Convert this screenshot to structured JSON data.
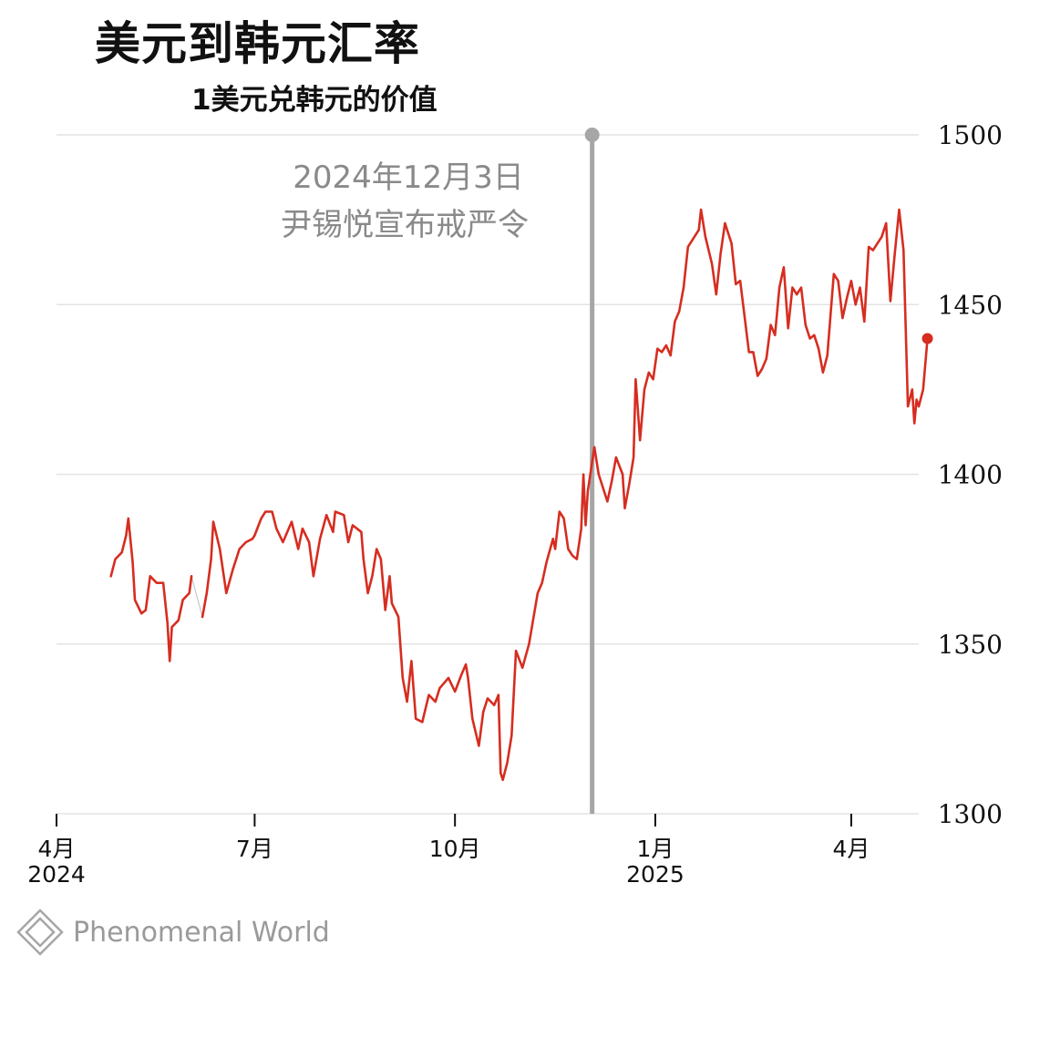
{
  "title": "美元到韩元汇率",
  "subtitle": "1美元兑韩元的价值",
  "source_logo": "Phenomenal World",
  "colors": {
    "line": "#d62d20",
    "marker": "#a6a6a6",
    "grid": "#e3e3e3",
    "gap": "#c8c8c8"
  },
  "chart_data": {
    "type": "line",
    "title": "美元到韩元汇率",
    "subtitle": "1美元兑韩元的价值",
    "xlabel": "",
    "ylabel": "",
    "ylim": [
      1300,
      1500
    ],
    "xlim": [
      "2024-04-01",
      "2025-05-02"
    ],
    "grid": true,
    "y_axis_position": "right",
    "yticks": [
      {
        "value": 1500,
        "label": "1500"
      },
      {
        "value": 1450,
        "label": "1450"
      },
      {
        "value": 1400,
        "label": "1400"
      },
      {
        "value": 1350,
        "label": "1350"
      },
      {
        "value": 1300,
        "label": "1300"
      }
    ],
    "xticks": [
      {
        "date": "2024-04-01",
        "label": "4月",
        "year": "2024"
      },
      {
        "date": "2024-07-01",
        "label": "7月",
        "year": ""
      },
      {
        "date": "2024-10-01",
        "label": "10月",
        "year": ""
      },
      {
        "date": "2025-01-01",
        "label": "1月",
        "year": "2025"
      },
      {
        "date": "2025-04-01",
        "label": "4月",
        "year": ""
      }
    ],
    "annotation": {
      "date": "2024-12-03",
      "line1": "2024年12月3日",
      "line2": "尹锡悦宣布戒严令"
    },
    "series": [
      {
        "values": [
          [
            "2024-04-26",
            1370
          ],
          [
            "2024-04-28",
            1375
          ],
          [
            "2024-05-01",
            1377
          ],
          [
            "2024-05-03",
            1382
          ],
          [
            "2024-05-04",
            1387
          ],
          [
            "2024-05-06",
            1374
          ],
          [
            "2024-05-07",
            1363
          ],
          [
            "2024-05-10",
            1359
          ],
          [
            "2024-05-12",
            1360
          ],
          [
            "2024-05-14",
            1370
          ],
          [
            "2024-05-17",
            1368
          ],
          [
            "2024-05-20",
            1368
          ],
          [
            "2024-05-22",
            1356
          ],
          [
            "2024-05-23",
            1345
          ],
          [
            "2024-05-24",
            1355
          ],
          [
            "2024-05-27",
            1357
          ],
          [
            "2024-05-29",
            1363
          ],
          [
            "2024-06-01",
            1365
          ],
          [
            "2024-06-02",
            1370
          ],
          [
            "2024-06-07",
            1358
          ],
          [
            "2024-06-09",
            1365
          ],
          [
            "2024-06-11",
            1375
          ],
          [
            "2024-06-12",
            1386
          ],
          [
            "2024-06-15",
            1378
          ],
          [
            "2024-06-18",
            1365
          ],
          [
            "2024-06-21",
            1372
          ],
          [
            "2024-06-24",
            1378
          ],
          [
            "2024-06-27",
            1380
          ],
          [
            "2024-06-30",
            1381
          ],
          [
            "2024-07-01",
            1382
          ],
          [
            "2024-07-04",
            1387
          ],
          [
            "2024-07-06",
            1389
          ],
          [
            "2024-07-09",
            1389
          ],
          [
            "2024-07-11",
            1384
          ],
          [
            "2024-07-14",
            1380
          ],
          [
            "2024-07-16",
            1383
          ],
          [
            "2024-07-18",
            1386
          ],
          [
            "2024-07-21",
            1378
          ],
          [
            "2024-07-23",
            1384
          ],
          [
            "2024-07-26",
            1380
          ],
          [
            "2024-07-28",
            1370
          ],
          [
            "2024-07-31",
            1381
          ],
          [
            "2024-08-03",
            1388
          ],
          [
            "2024-08-06",
            1383
          ],
          [
            "2024-08-07",
            1389
          ],
          [
            "2024-08-11",
            1388
          ],
          [
            "2024-08-13",
            1380
          ],
          [
            "2024-08-15",
            1385
          ],
          [
            "2024-08-19",
            1383
          ],
          [
            "2024-08-20",
            1375
          ],
          [
            "2024-08-22",
            1365
          ],
          [
            "2024-08-24",
            1370
          ],
          [
            "2024-08-26",
            1378
          ],
          [
            "2024-08-28",
            1375
          ],
          [
            "2024-08-30",
            1360
          ],
          [
            "2024-09-01",
            1370
          ],
          [
            "2024-09-02",
            1362
          ],
          [
            "2024-09-05",
            1358
          ],
          [
            "2024-09-07",
            1340
          ],
          [
            "2024-09-09",
            1333
          ],
          [
            "2024-09-11",
            1345
          ],
          [
            "2024-09-13",
            1328
          ],
          [
            "2024-09-16",
            1327
          ],
          [
            "2024-09-19",
            1335
          ],
          [
            "2024-09-22",
            1333
          ],
          [
            "2024-09-24",
            1337
          ],
          [
            "2024-09-28",
            1340
          ],
          [
            "2024-10-01",
            1336
          ],
          [
            "2024-10-04",
            1341
          ],
          [
            "2024-10-06",
            1344
          ],
          [
            "2024-10-07",
            1340
          ],
          [
            "2024-10-09",
            1328
          ],
          [
            "2024-10-12",
            1320
          ],
          [
            "2024-10-14",
            1330
          ],
          [
            "2024-10-16",
            1334
          ],
          [
            "2024-10-19",
            1332
          ],
          [
            "2024-10-21",
            1335
          ],
          [
            "2024-10-22",
            1312
          ],
          [
            "2024-10-23",
            1310
          ],
          [
            "2024-10-25",
            1315
          ],
          [
            "2024-10-27",
            1323
          ],
          [
            "2024-10-29",
            1348
          ],
          [
            "2024-11-01",
            1343
          ],
          [
            "2024-11-04",
            1350
          ],
          [
            "2024-11-08",
            1365
          ],
          [
            "2024-11-10",
            1368
          ],
          [
            "2024-11-12",
            1374
          ],
          [
            "2024-11-15",
            1381
          ],
          [
            "2024-11-16",
            1378
          ],
          [
            "2024-11-18",
            1389
          ],
          [
            "2024-11-20",
            1387
          ],
          [
            "2024-11-22",
            1378
          ],
          [
            "2024-11-24",
            1376
          ],
          [
            "2024-11-26",
            1375
          ],
          [
            "2024-11-28",
            1384
          ],
          [
            "2024-11-29",
            1400
          ],
          [
            "2024-11-30",
            1385
          ],
          [
            "2024-12-01",
            1395
          ],
          [
            "2024-12-04",
            1408
          ],
          [
            "2024-12-06",
            1400
          ],
          [
            "2024-12-08",
            1396
          ],
          [
            "2024-12-10",
            1392
          ],
          [
            "2024-12-12",
            1398
          ],
          [
            "2024-12-14",
            1405
          ],
          [
            "2024-12-17",
            1400
          ],
          [
            "2024-12-18",
            1390
          ],
          [
            "2024-12-20",
            1397
          ],
          [
            "2024-12-22",
            1405
          ],
          [
            "2024-12-23",
            1428
          ],
          [
            "2024-12-25",
            1410
          ],
          [
            "2024-12-27",
            1425
          ],
          [
            "2024-12-29",
            1430
          ],
          [
            "2024-12-31",
            1428
          ],
          [
            "2025-01-02",
            1437
          ],
          [
            "2025-01-04",
            1436
          ],
          [
            "2025-01-06",
            1438
          ],
          [
            "2025-01-08",
            1435
          ],
          [
            "2025-01-10",
            1445
          ],
          [
            "2025-01-12",
            1448
          ],
          [
            "2025-01-14",
            1455
          ],
          [
            "2025-01-16",
            1467
          ],
          [
            "2025-01-19",
            1470
          ],
          [
            "2025-01-21",
            1472
          ],
          [
            "2025-01-22",
            1478
          ],
          [
            "2025-01-24",
            1470
          ],
          [
            "2025-01-27",
            1462
          ],
          [
            "2025-01-29",
            1453
          ],
          [
            "2025-01-31",
            1465
          ],
          [
            "2025-02-02",
            1474
          ],
          [
            "2025-02-05",
            1468
          ],
          [
            "2025-02-07",
            1456
          ],
          [
            "2025-02-09",
            1457
          ],
          [
            "2025-02-13",
            1436
          ],
          [
            "2025-02-15",
            1436
          ],
          [
            "2025-02-17",
            1429
          ],
          [
            "2025-02-19",
            1431
          ],
          [
            "2025-02-21",
            1434
          ],
          [
            "2025-02-23",
            1444
          ],
          [
            "2025-02-25",
            1441
          ],
          [
            "2025-02-27",
            1455
          ],
          [
            "2025-03-01",
            1461
          ],
          [
            "2025-03-03",
            1443
          ],
          [
            "2025-03-05",
            1455
          ],
          [
            "2025-03-07",
            1453
          ],
          [
            "2025-03-09",
            1455
          ],
          [
            "2025-03-11",
            1444
          ],
          [
            "2025-03-13",
            1440
          ],
          [
            "2025-03-15",
            1441
          ],
          [
            "2025-03-17",
            1437
          ],
          [
            "2025-03-19",
            1430
          ],
          [
            "2025-03-21",
            1435
          ],
          [
            "2025-03-24",
            1459
          ],
          [
            "2025-03-26",
            1457
          ],
          [
            "2025-03-28",
            1446
          ],
          [
            "2025-03-30",
            1452
          ],
          [
            "2025-04-01",
            1457
          ],
          [
            "2025-04-03",
            1450
          ],
          [
            "2025-04-05",
            1455
          ],
          [
            "2025-04-07",
            1445
          ],
          [
            "2025-04-09",
            1467
          ],
          [
            "2025-04-11",
            1466
          ],
          [
            "2025-04-13",
            1468
          ],
          [
            "2025-04-15",
            1470
          ],
          [
            "2025-04-17",
            1474
          ],
          [
            "2025-04-19",
            1451
          ],
          [
            "2025-04-21",
            1465
          ],
          [
            "2025-04-23",
            1478
          ],
          [
            "2025-04-25",
            1466
          ],
          [
            "2025-04-27",
            1420
          ],
          [
            "2025-04-29",
            1425
          ],
          [
            "2025-04-30",
            1415
          ],
          [
            "2025-05-01",
            1422
          ],
          [
            "2025-05-02",
            1420
          ],
          [
            "2025-05-04",
            1425
          ],
          [
            "2025-05-06",
            1440
          ]
        ]
      }
    ]
  }
}
